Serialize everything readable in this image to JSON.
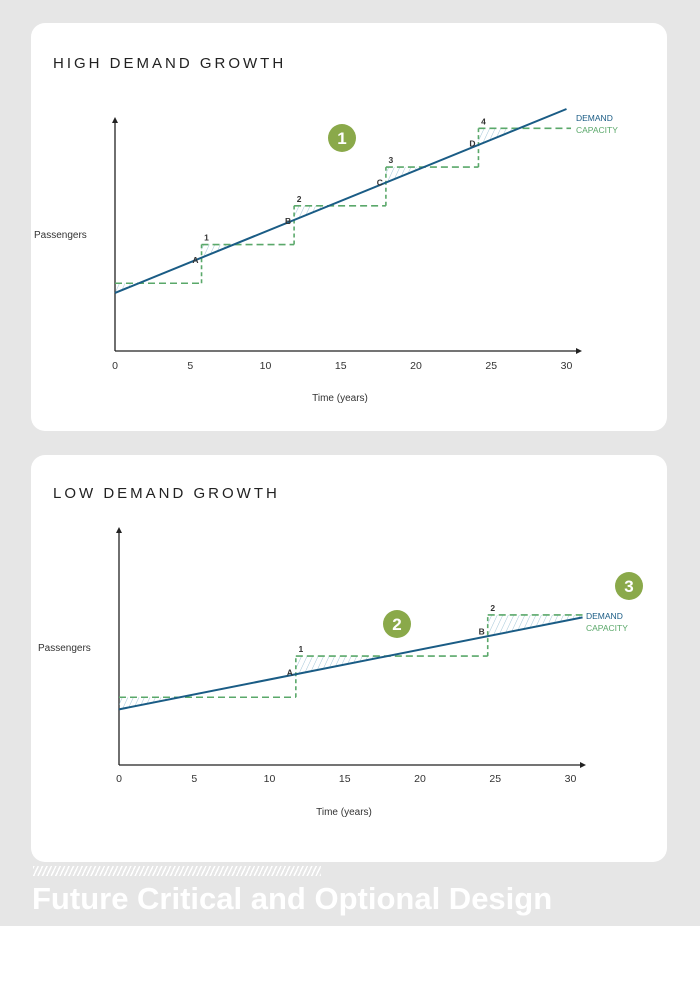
{
  "footer": {
    "title": "Future Critical and Optional Design"
  },
  "chart_data": [
    {
      "type": "line",
      "title": "HIGH DEMAND GROWTH",
      "xlabel": "Time (years)",
      "ylabel": "Passengers",
      "xlim": [
        0,
        30
      ],
      "x_ticks": [
        "0",
        "5",
        "10",
        "15",
        "20",
        "25",
        "30"
      ],
      "legend": [
        "DEMAND",
        "CAPACITY"
      ],
      "colors": {
        "demand": "#1a5c85",
        "capacity": "#5aa86a",
        "badge": "#8aa94a"
      },
      "demand": {
        "x": [
          0,
          30
        ],
        "y": [
          0.24,
          1.0
        ]
      },
      "capacity_steps": [
        {
          "x0": 0,
          "x1": 5.75,
          "y": 0.28,
          "label": ""
        },
        {
          "x0": 5.75,
          "x1": 11.9,
          "y": 0.44,
          "label": "1",
          "marker": "A"
        },
        {
          "x0": 11.9,
          "x1": 18.0,
          "y": 0.6,
          "label": "2",
          "marker": "B"
        },
        {
          "x0": 18.0,
          "x1": 24.15,
          "y": 0.76,
          "label": "3",
          "marker": "C"
        },
        {
          "x0": 24.15,
          "x1": 30.3,
          "y": 0.92,
          "label": "4",
          "marker": "D"
        }
      ],
      "badge": "1"
    },
    {
      "type": "line",
      "title": "LOW DEMAND GROWTH",
      "xlabel": "Time (years)",
      "ylabel": "Passengers",
      "xlim": [
        0,
        30
      ],
      "x_ticks": [
        "0",
        "5",
        "10",
        "15",
        "20",
        "25",
        "30"
      ],
      "legend": [
        "DEMAND",
        "CAPACITY"
      ],
      "colors": {
        "demand": "#1a5c85",
        "capacity": "#5aa86a",
        "badge": "#8aa94a"
      },
      "demand": {
        "x": [
          0,
          30.8
        ],
        "y": [
          0.23,
          0.61
        ]
      },
      "capacity_steps": [
        {
          "x0": 0,
          "x1": 11.75,
          "y": 0.28,
          "label": ""
        },
        {
          "x0": 11.75,
          "x1": 24.5,
          "y": 0.45,
          "label": "1",
          "marker": "A"
        },
        {
          "x0": 24.5,
          "x1": 30.8,
          "y": 0.62,
          "label": "2",
          "marker": "B"
        }
      ],
      "badge": "2",
      "badge_extra": "3"
    }
  ]
}
